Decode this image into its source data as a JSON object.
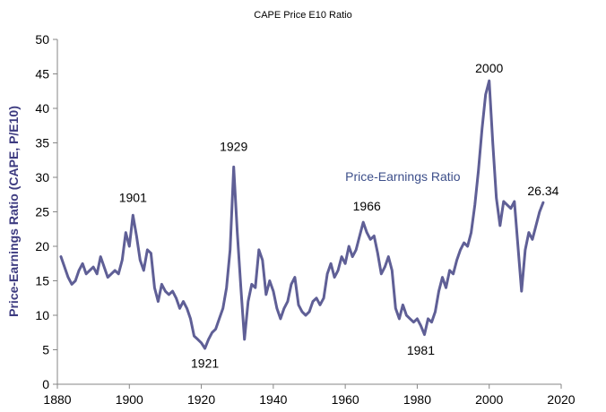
{
  "chart_data": {
    "type": "line",
    "title": "CAPE Price E10 Ratio",
    "xlabel": "",
    "ylabel": "Price-Earnings Ratio (CAPE, P/E10)",
    "xlim": [
      1880,
      2020
    ],
    "ylim": [
      0,
      50
    ],
    "xticks": [
      "1880",
      "1900",
      "1920",
      "1940",
      "1960",
      "1980",
      "2000",
      "2020"
    ],
    "yticks": [
      "0",
      "5",
      "10",
      "15",
      "20",
      "25",
      "30",
      "35",
      "40",
      "45",
      "50"
    ],
    "grid": false,
    "colors": {
      "line": "#5f5f96",
      "axis": "#868686"
    },
    "series": [
      {
        "name": "Price-Earnings Ratio",
        "points": [
          [
            1881.0,
            18.5
          ],
          [
            1882.0,
            17.0
          ],
          [
            1883.0,
            15.5
          ],
          [
            1884.0,
            14.5
          ],
          [
            1885.0,
            15.0
          ],
          [
            1886.0,
            16.5
          ],
          [
            1887.0,
            17.5
          ],
          [
            1888.0,
            16.0
          ],
          [
            1889.0,
            16.5
          ],
          [
            1890.0,
            17.0
          ],
          [
            1891.0,
            16.0
          ],
          [
            1892.0,
            18.5
          ],
          [
            1893.0,
            17.0
          ],
          [
            1894.0,
            15.5
          ],
          [
            1895.0,
            16.0
          ],
          [
            1896.0,
            16.5
          ],
          [
            1897.0,
            16.0
          ],
          [
            1898.0,
            18.0
          ],
          [
            1899.0,
            22.0
          ],
          [
            1900.0,
            20.0
          ],
          [
            1901.0,
            24.5
          ],
          [
            1902.0,
            21.5
          ],
          [
            1903.0,
            18.0
          ],
          [
            1904.0,
            16.5
          ],
          [
            1905.0,
            19.5
          ],
          [
            1906.0,
            19.0
          ],
          [
            1907.0,
            14.0
          ],
          [
            1908.0,
            12.0
          ],
          [
            1909.0,
            14.5
          ],
          [
            1910.0,
            13.5
          ],
          [
            1911.0,
            13.0
          ],
          [
            1912.0,
            13.5
          ],
          [
            1913.0,
            12.5
          ],
          [
            1914.0,
            11.0
          ],
          [
            1915.0,
            12.0
          ],
          [
            1916.0,
            11.0
          ],
          [
            1917.0,
            9.5
          ],
          [
            1918.0,
            7.0
          ],
          [
            1919.0,
            6.5
          ],
          [
            1920.0,
            6.0
          ],
          [
            1921.0,
            5.2
          ],
          [
            1922.0,
            6.5
          ],
          [
            1923.0,
            7.5
          ],
          [
            1924.0,
            8.0
          ],
          [
            1925.0,
            9.5
          ],
          [
            1926.0,
            11.0
          ],
          [
            1927.0,
            14.0
          ],
          [
            1928.0,
            19.5
          ],
          [
            1929.0,
            31.5
          ],
          [
            1930.0,
            22.0
          ],
          [
            1931.0,
            14.0
          ],
          [
            1932.0,
            6.5
          ],
          [
            1933.0,
            12.0
          ],
          [
            1934.0,
            14.5
          ],
          [
            1935.0,
            14.0
          ],
          [
            1936.0,
            19.5
          ],
          [
            1937.0,
            18.0
          ],
          [
            1938.0,
            13.0
          ],
          [
            1939.0,
            15.0
          ],
          [
            1940.0,
            13.5
          ],
          [
            1941.0,
            11.0
          ],
          [
            1942.0,
            9.5
          ],
          [
            1943.0,
            11.0
          ],
          [
            1944.0,
            12.0
          ],
          [
            1945.0,
            14.5
          ],
          [
            1946.0,
            15.5
          ],
          [
            1947.0,
            11.5
          ],
          [
            1948.0,
            10.5
          ],
          [
            1949.0,
            10.0
          ],
          [
            1950.0,
            10.5
          ],
          [
            1951.0,
            12.0
          ],
          [
            1952.0,
            12.5
          ],
          [
            1953.0,
            11.5
          ],
          [
            1954.0,
            12.5
          ],
          [
            1955.0,
            16.0
          ],
          [
            1956.0,
            17.5
          ],
          [
            1957.0,
            15.5
          ],
          [
            1958.0,
            16.5
          ],
          [
            1959.0,
            18.5
          ],
          [
            1960.0,
            17.5
          ],
          [
            1961.0,
            20.0
          ],
          [
            1962.0,
            18.5
          ],
          [
            1963.0,
            19.5
          ],
          [
            1964.0,
            21.5
          ],
          [
            1965.0,
            23.5
          ],
          [
            1966.0,
            22.0
          ],
          [
            1967.0,
            21.0
          ],
          [
            1968.0,
            21.5
          ],
          [
            1969.0,
            19.0
          ],
          [
            1970.0,
            16.0
          ],
          [
            1971.0,
            17.0
          ],
          [
            1972.0,
            18.5
          ],
          [
            1973.0,
            16.5
          ],
          [
            1974.0,
            11.0
          ],
          [
            1975.0,
            9.5
          ],
          [
            1976.0,
            11.5
          ],
          [
            1977.0,
            10.0
          ],
          [
            1978.0,
            9.5
          ],
          [
            1979.0,
            9.0
          ],
          [
            1980.0,
            9.5
          ],
          [
            1981.0,
            8.5
          ],
          [
            1982.0,
            7.2
          ],
          [
            1983.0,
            9.5
          ],
          [
            1984.0,
            9.0
          ],
          [
            1985.0,
            10.5
          ],
          [
            1986.0,
            13.5
          ],
          [
            1987.0,
            15.5
          ],
          [
            1988.0,
            14.0
          ],
          [
            1989.0,
            16.5
          ],
          [
            1990.0,
            16.0
          ],
          [
            1991.0,
            18.0
          ],
          [
            1992.0,
            19.5
          ],
          [
            1993.0,
            20.5
          ],
          [
            1994.0,
            20.0
          ],
          [
            1995.0,
            22.0
          ],
          [
            1996.0,
            26.0
          ],
          [
            1997.0,
            31.0
          ],
          [
            1998.0,
            37.0
          ],
          [
            1999.0,
            42.0
          ],
          [
            2000.0,
            44.0
          ],
          [
            2001.0,
            35.0
          ],
          [
            2002.0,
            27.0
          ],
          [
            2003.0,
            23.0
          ],
          [
            2004.0,
            26.5
          ],
          [
            2005.0,
            26.0
          ],
          [
            2006.0,
            25.5
          ],
          [
            2007.0,
            26.5
          ],
          [
            2008.0,
            20.0
          ],
          [
            2009.0,
            13.5
          ],
          [
            2010.0,
            19.5
          ],
          [
            2011.0,
            22.0
          ],
          [
            2012.0,
            21.0
          ],
          [
            2013.0,
            23.0
          ],
          [
            2014.0,
            25.0
          ],
          [
            2015.0,
            26.34
          ]
        ]
      }
    ],
    "series_label": {
      "text": "Price-Earnings Ratio",
      "x": 1976,
      "y": 29.5
    },
    "annotations": [
      {
        "text": "1901",
        "x": 1901.0,
        "y": 26.4
      },
      {
        "text": "1921",
        "x": 1921.0,
        "y": 2.4
      },
      {
        "text": "1929",
        "x": 1929.0,
        "y": 33.8
      },
      {
        "text": "1966",
        "x": 1966.0,
        "y": 25.2
      },
      {
        "text": "1981",
        "x": 1981.0,
        "y": 4.3
      },
      {
        "text": "2000",
        "x": 2000.0,
        "y": 45.2
      },
      {
        "text": "26.34",
        "x": 2015.0,
        "y": 27.4
      }
    ]
  }
}
